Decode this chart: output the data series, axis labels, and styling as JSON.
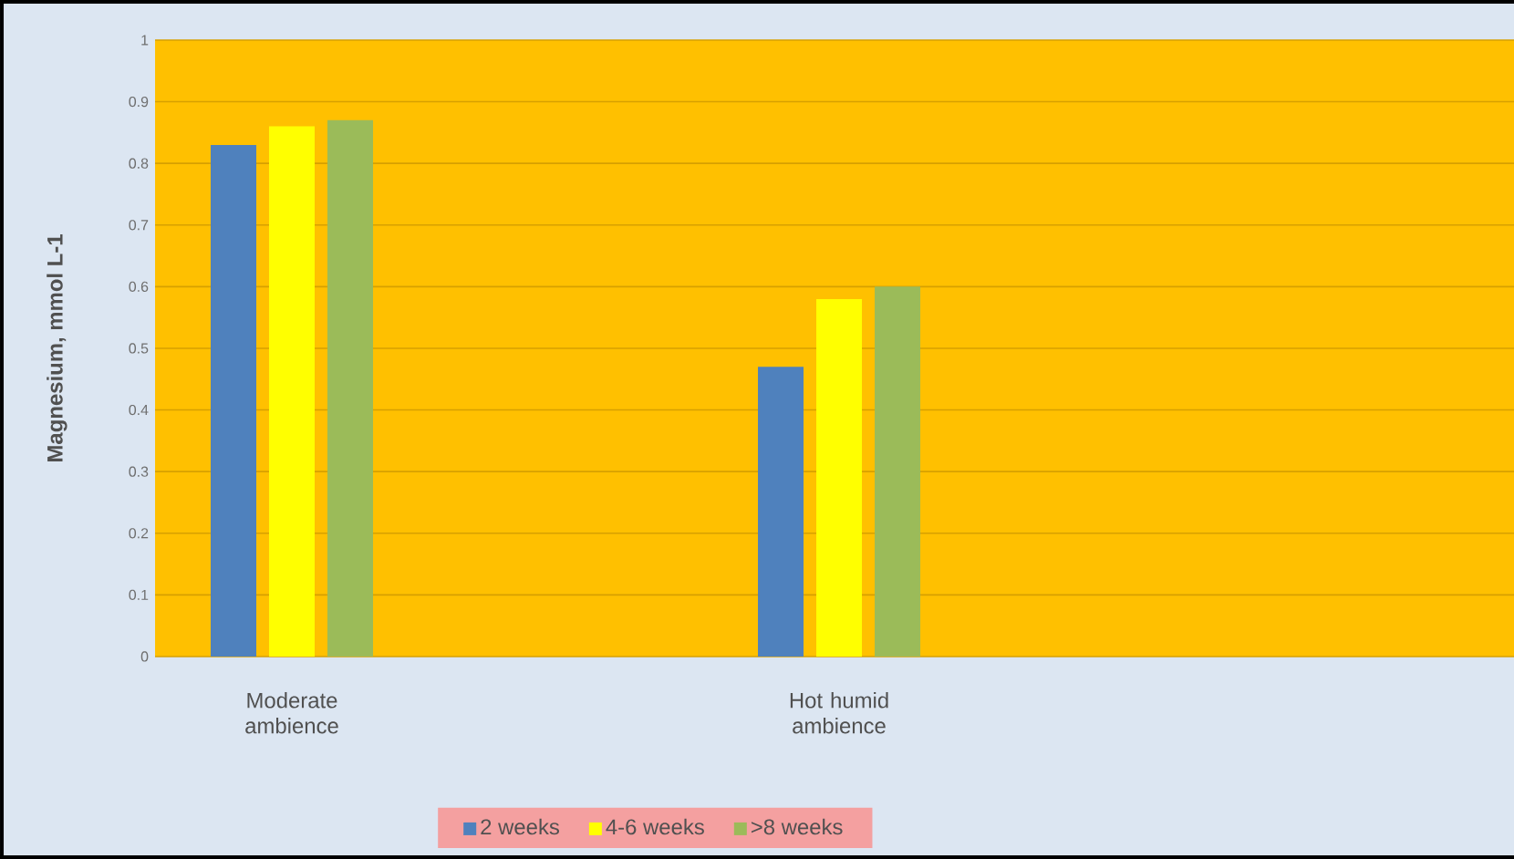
{
  "chart_data": {
    "type": "bar",
    "ylabel": "Magnesium, mmol L-1",
    "categories": [
      "Moderate ambience",
      "Hot humid ambience"
    ],
    "series": [
      {
        "name": "2 weeks",
        "color": "#4f81bd",
        "values": [
          0.83,
          0.47
        ]
      },
      {
        "name": "4-6 weeks",
        "color": "#ffff00",
        "values": [
          0.86,
          0.58
        ]
      },
      {
        "name": ">8 weeks",
        "color": "#9bbb59",
        "values": [
          0.87,
          0.6
        ]
      }
    ],
    "ylim": [
      0,
      1
    ],
    "yticks": [
      0,
      0.1,
      0.2,
      0.3,
      0.4,
      0.5,
      0.6,
      0.7,
      0.8,
      0.9,
      1
    ],
    "grid": "y",
    "legend": "bottom"
  }
}
